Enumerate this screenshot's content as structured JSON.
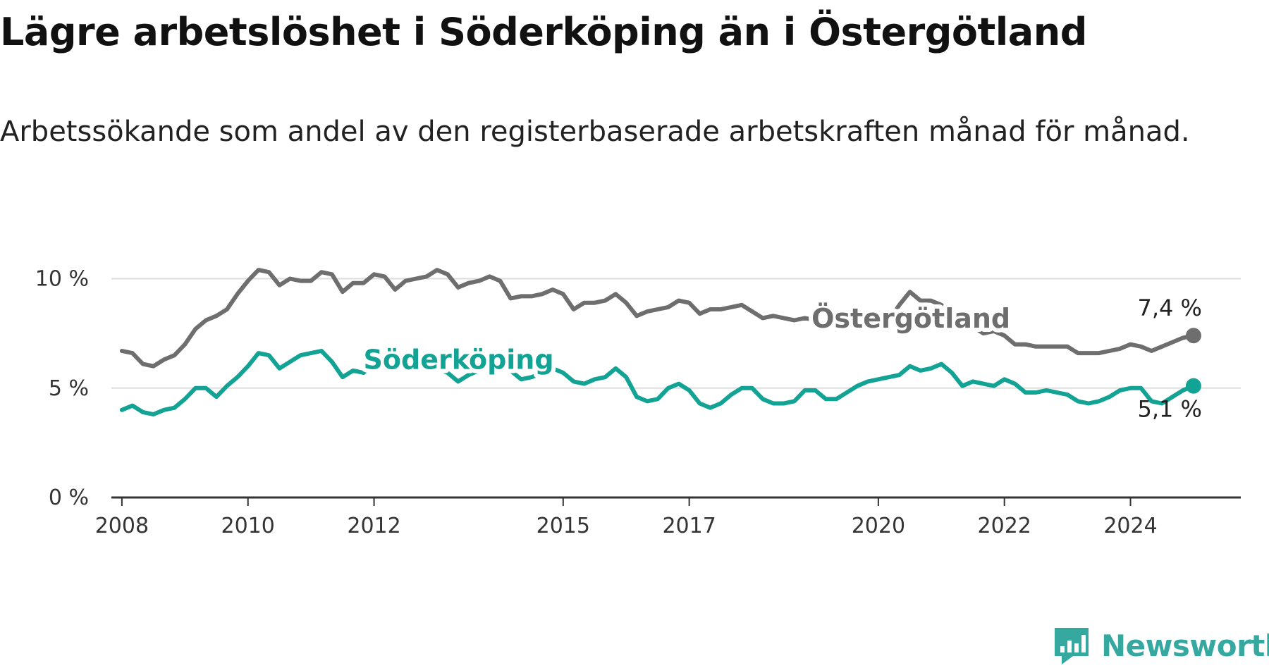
{
  "title": "Lägre arbetslöshet i Söderköping än i Östergötland",
  "subtitle": "Arbetssökande som andel av den registerbaserade arbetskraften månad för månad.",
  "brand": {
    "name": "Newsworthy",
    "icon": "newsworthy-logo-icon",
    "color": "#35a89f"
  },
  "chart_data": {
    "type": "line",
    "title": "Lägre arbetslöshet i Söderköping än i Östergötland",
    "subtitle": "Arbetssökande som andel av den registerbaserade arbetskraften månad för månad.",
    "xlabel": "",
    "ylabel": "",
    "x_ticks": [
      "2008",
      "2010",
      "2012",
      "2015",
      "2017",
      "2020",
      "2022",
      "2024"
    ],
    "y_ticks": [
      "0 %",
      "5 %",
      "10 %"
    ],
    "ylim": [
      0,
      10.5
    ],
    "xlim": [
      "2007-11",
      "2025-10"
    ],
    "grid": true,
    "legend": "none, series labelled directly on the lines",
    "series": [
      {
        "name": "Östergötland",
        "color": "#6e6e6e",
        "end_label": "7,4 %",
        "points": [
          [
            "2008-01",
            6.7
          ],
          [
            "2008-03",
            6.6
          ],
          [
            "2008-05",
            6.1
          ],
          [
            "2008-07",
            6.0
          ],
          [
            "2008-09",
            6.3
          ],
          [
            "2008-11",
            6.5
          ],
          [
            "2009-01",
            7.0
          ],
          [
            "2009-03",
            7.7
          ],
          [
            "2009-05",
            8.1
          ],
          [
            "2009-07",
            8.3
          ],
          [
            "2009-09",
            8.6
          ],
          [
            "2009-11",
            9.3
          ],
          [
            "2010-01",
            9.9
          ],
          [
            "2010-03",
            10.4
          ],
          [
            "2010-05",
            10.3
          ],
          [
            "2010-07",
            9.7
          ],
          [
            "2010-09",
            10.0
          ],
          [
            "2010-11",
            9.9
          ],
          [
            "2011-01",
            9.9
          ],
          [
            "2011-03",
            10.3
          ],
          [
            "2011-05",
            10.2
          ],
          [
            "2011-07",
            9.4
          ],
          [
            "2011-09",
            9.8
          ],
          [
            "2011-11",
            9.8
          ],
          [
            "2012-01",
            10.2
          ],
          [
            "2012-03",
            10.1
          ],
          [
            "2012-05",
            9.5
          ],
          [
            "2012-07",
            9.9
          ],
          [
            "2012-09",
            10.0
          ],
          [
            "2012-11",
            10.1
          ],
          [
            "2013-01",
            10.4
          ],
          [
            "2013-03",
            10.2
          ],
          [
            "2013-05",
            9.6
          ],
          [
            "2013-07",
            9.8
          ],
          [
            "2013-09",
            9.9
          ],
          [
            "2013-11",
            10.1
          ],
          [
            "2014-01",
            9.9
          ],
          [
            "2014-03",
            9.1
          ],
          [
            "2014-05",
            9.2
          ],
          [
            "2014-07",
            9.2
          ],
          [
            "2014-09",
            9.3
          ],
          [
            "2014-11",
            9.5
          ],
          [
            "2015-01",
            9.3
          ],
          [
            "2015-03",
            8.6
          ],
          [
            "2015-05",
            8.9
          ],
          [
            "2015-07",
            8.9
          ],
          [
            "2015-09",
            9.0
          ],
          [
            "2015-11",
            9.3
          ],
          [
            "2016-01",
            8.9
          ],
          [
            "2016-03",
            8.3
          ],
          [
            "2016-05",
            8.5
          ],
          [
            "2016-07",
            8.6
          ],
          [
            "2016-09",
            8.7
          ],
          [
            "2016-11",
            9.0
          ],
          [
            "2017-01",
            8.9
          ],
          [
            "2017-03",
            8.4
          ],
          [
            "2017-05",
            8.6
          ],
          [
            "2017-07",
            8.6
          ],
          [
            "2017-09",
            8.7
          ],
          [
            "2017-11",
            8.8
          ],
          [
            "2018-01",
            8.5
          ],
          [
            "2018-03",
            8.2
          ],
          [
            "2018-05",
            8.3
          ],
          [
            "2018-07",
            8.2
          ],
          [
            "2018-09",
            8.1
          ],
          [
            "2018-11",
            8.2
          ],
          [
            "2019-01",
            8.1
          ],
          [
            "2019-03",
            7.8
          ],
          [
            "2019-05",
            7.9
          ],
          [
            "2019-07",
            7.9
          ],
          [
            "2019-09",
            8.0
          ],
          [
            "2019-11",
            8.2
          ],
          [
            "2020-01",
            8.3
          ],
          [
            "2020-03",
            8.1
          ],
          [
            "2020-05",
            8.8
          ],
          [
            "2020-07",
            9.4
          ],
          [
            "2020-09",
            9.0
          ],
          [
            "2020-11",
            9.0
          ],
          [
            "2021-01",
            8.8
          ],
          [
            "2021-03",
            8.2
          ],
          [
            "2021-05",
            7.9
          ],
          [
            "2021-07",
            7.8
          ],
          [
            "2021-09",
            7.5
          ],
          [
            "2021-11",
            7.6
          ],
          [
            "2022-01",
            7.4
          ],
          [
            "2022-03",
            7.0
          ],
          [
            "2022-05",
            7.0
          ],
          [
            "2022-07",
            6.9
          ],
          [
            "2022-09",
            6.9
          ],
          [
            "2022-11",
            6.9
          ],
          [
            "2023-01",
            6.9
          ],
          [
            "2023-03",
            6.6
          ],
          [
            "2023-05",
            6.6
          ],
          [
            "2023-07",
            6.6
          ],
          [
            "2023-09",
            6.7
          ],
          [
            "2023-11",
            6.8
          ],
          [
            "2024-01",
            7.0
          ],
          [
            "2024-03",
            6.9
          ],
          [
            "2024-05",
            6.7
          ],
          [
            "2024-07",
            6.9
          ],
          [
            "2024-09",
            7.1
          ],
          [
            "2024-11",
            7.3
          ],
          [
            "2025-01",
            7.4
          ]
        ]
      },
      {
        "name": "Söderköping",
        "color": "#12a394",
        "end_label": "5,1 %",
        "points": [
          [
            "2008-01",
            4.0
          ],
          [
            "2008-03",
            4.2
          ],
          [
            "2008-05",
            3.9
          ],
          [
            "2008-07",
            3.8
          ],
          [
            "2008-09",
            4.0
          ],
          [
            "2008-11",
            4.1
          ],
          [
            "2009-01",
            4.5
          ],
          [
            "2009-03",
            5.0
          ],
          [
            "2009-05",
            5.0
          ],
          [
            "2009-07",
            4.6
          ],
          [
            "2009-09",
            5.1
          ],
          [
            "2009-11",
            5.5
          ],
          [
            "2010-01",
            6.0
          ],
          [
            "2010-03",
            6.6
          ],
          [
            "2010-05",
            6.5
          ],
          [
            "2010-07",
            5.9
          ],
          [
            "2010-09",
            6.2
          ],
          [
            "2010-11",
            6.5
          ],
          [
            "2011-01",
            6.6
          ],
          [
            "2011-03",
            6.7
          ],
          [
            "2011-05",
            6.2
          ],
          [
            "2011-07",
            5.5
          ],
          [
            "2011-09",
            5.8
          ],
          [
            "2011-11",
            5.7
          ],
          [
            "2012-01",
            6.2
          ],
          [
            "2012-03",
            6.5
          ],
          [
            "2012-05",
            6.2
          ],
          [
            "2012-07",
            6.3
          ],
          [
            "2012-09",
            6.4
          ],
          [
            "2012-11",
            6.1
          ],
          [
            "2013-01",
            5.9
          ],
          [
            "2013-03",
            5.7
          ],
          [
            "2013-05",
            5.3
          ],
          [
            "2013-07",
            5.6
          ],
          [
            "2013-09",
            5.8
          ],
          [
            "2013-11",
            5.9
          ],
          [
            "2014-01",
            6.0
          ],
          [
            "2014-03",
            5.8
          ],
          [
            "2014-05",
            5.4
          ],
          [
            "2014-07",
            5.5
          ],
          [
            "2014-09",
            5.7
          ],
          [
            "2014-11",
            5.9
          ],
          [
            "2015-01",
            5.7
          ],
          [
            "2015-03",
            5.3
          ],
          [
            "2015-05",
            5.2
          ],
          [
            "2015-07",
            5.4
          ],
          [
            "2015-09",
            5.5
          ],
          [
            "2015-11",
            5.9
          ],
          [
            "2016-01",
            5.5
          ],
          [
            "2016-03",
            4.6
          ],
          [
            "2016-05",
            4.4
          ],
          [
            "2016-07",
            4.5
          ],
          [
            "2016-09",
            5.0
          ],
          [
            "2016-11",
            5.2
          ],
          [
            "2017-01",
            4.9
          ],
          [
            "2017-03",
            4.3
          ],
          [
            "2017-05",
            4.1
          ],
          [
            "2017-07",
            4.3
          ],
          [
            "2017-09",
            4.7
          ],
          [
            "2017-11",
            5.0
          ],
          [
            "2018-01",
            5.0
          ],
          [
            "2018-03",
            4.5
          ],
          [
            "2018-05",
            4.3
          ],
          [
            "2018-07",
            4.3
          ],
          [
            "2018-09",
            4.4
          ],
          [
            "2018-11",
            4.9
          ],
          [
            "2019-01",
            4.9
          ],
          [
            "2019-03",
            4.5
          ],
          [
            "2019-05",
            4.5
          ],
          [
            "2019-07",
            4.8
          ],
          [
            "2019-09",
            5.1
          ],
          [
            "2019-11",
            5.3
          ],
          [
            "2020-01",
            5.4
          ],
          [
            "2020-03",
            5.5
          ],
          [
            "2020-05",
            5.6
          ],
          [
            "2020-07",
            6.0
          ],
          [
            "2020-09",
            5.8
          ],
          [
            "2020-11",
            5.9
          ],
          [
            "2021-01",
            6.1
          ],
          [
            "2021-03",
            5.7
          ],
          [
            "2021-05",
            5.1
          ],
          [
            "2021-07",
            5.3
          ],
          [
            "2021-09",
            5.2
          ],
          [
            "2021-11",
            5.1
          ],
          [
            "2022-01",
            5.4
          ],
          [
            "2022-03",
            5.2
          ],
          [
            "2022-05",
            4.8
          ],
          [
            "2022-07",
            4.8
          ],
          [
            "2022-09",
            4.9
          ],
          [
            "2022-11",
            4.8
          ],
          [
            "2023-01",
            4.7
          ],
          [
            "2023-03",
            4.4
          ],
          [
            "2023-05",
            4.3
          ],
          [
            "2023-07",
            4.4
          ],
          [
            "2023-09",
            4.6
          ],
          [
            "2023-11",
            4.9
          ],
          [
            "2024-01",
            5.0
          ],
          [
            "2024-03",
            5.0
          ],
          [
            "2024-05",
            4.4
          ],
          [
            "2024-07",
            4.3
          ],
          [
            "2024-09",
            4.6
          ],
          [
            "2024-11",
            4.9
          ],
          [
            "2025-01",
            5.1
          ]
        ]
      }
    ]
  }
}
